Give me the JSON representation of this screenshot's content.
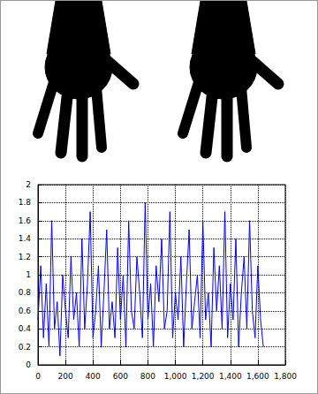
{
  "chart_data": {
    "type": "line",
    "color": "#0000ff",
    "grid": true,
    "x": [
      0,
      20,
      40,
      60,
      80,
      100,
      120,
      140,
      160,
      180,
      200,
      220,
      240,
      260,
      280,
      300,
      320,
      340,
      360,
      380,
      400,
      420,
      440,
      460,
      480,
      500,
      520,
      540,
      560,
      580,
      600,
      620,
      640,
      660,
      680,
      700,
      720,
      740,
      760,
      780,
      800,
      820,
      840,
      860,
      880,
      900,
      920,
      940,
      960,
      980,
      1000,
      1020,
      1040,
      1060,
      1080,
      1100,
      1120,
      1140,
      1160,
      1180,
      1200,
      1220,
      1240,
      1260,
      1280,
      1300,
      1320,
      1340,
      1360,
      1380,
      1400,
      1420,
      1440,
      1460,
      1480,
      1500,
      1520,
      1540,
      1560,
      1580,
      1600,
      1620,
      1640
    ],
    "values": [
      0.5,
      1.1,
      0.3,
      0.9,
      0.2,
      1.6,
      0.4,
      0.7,
      0.1,
      1.0,
      0.6,
      0.3,
      1.2,
      0.5,
      0.8,
      0.2,
      1.4,
      0.4,
      0.9,
      1.7,
      0.3,
      0.6,
      1.1,
      0.2,
      0.8,
      1.5,
      0.4,
      0.7,
      0.3,
      1.3,
      0.5,
      1.0,
      0.2,
      1.6,
      0.6,
      0.4,
      1.2,
      0.8,
      0.3,
      1.8,
      0.5,
      0.9,
      0.2,
      1.1,
      0.7,
      1.4,
      0.4,
      0.6,
      1.7,
      0.3,
      0.8,
      0.5,
      1.2,
      0.2,
      0.9,
      1.5,
      0.4,
      0.7,
      1.0,
      0.3,
      1.6,
      0.5,
      0.8,
      0.2,
      1.3,
      0.6,
      1.1,
      0.4,
      1.7,
      0.3,
      0.9,
      0.5,
      1.4,
      0.2,
      0.8,
      1.2,
      0.4,
      1.6,
      0.6,
      0.3,
      1.1,
      0.5,
      0.2
    ],
    "xlim": [
      0,
      1800
    ],
    "xticks": [
      0,
      200,
      400,
      600,
      800,
      1000,
      1200,
      1400,
      1600,
      1800
    ],
    "ylim": [
      0,
      2
    ],
    "yticks": [
      0,
      0.2,
      0.4,
      0.6,
      0.8,
      1,
      1.2,
      1.4,
      1.6,
      1.8,
      2
    ]
  }
}
